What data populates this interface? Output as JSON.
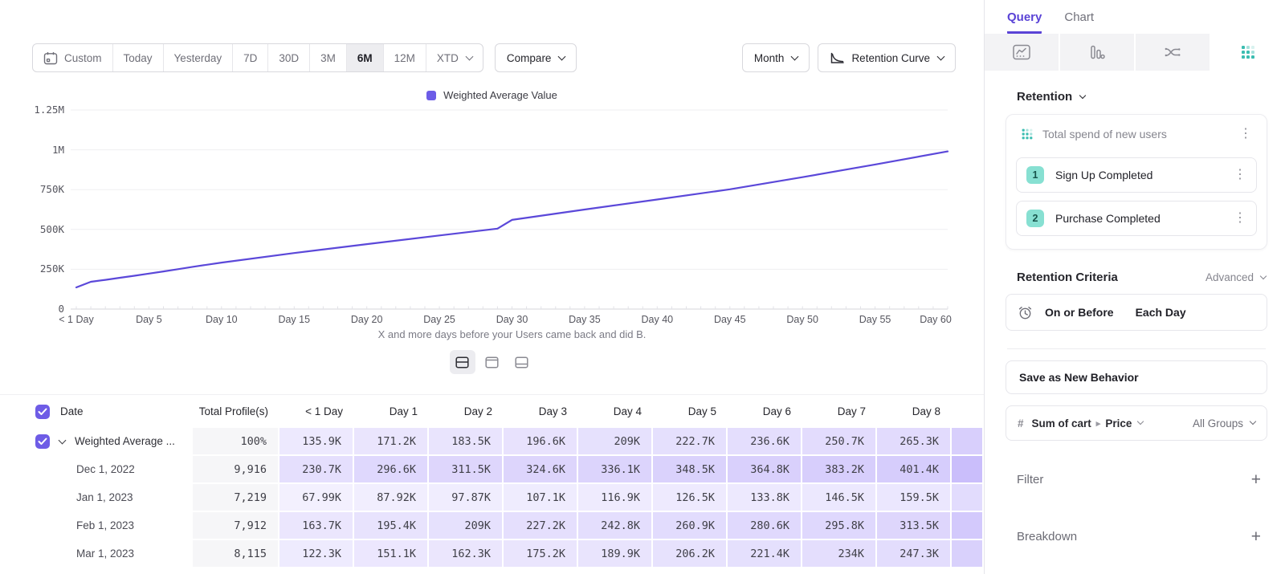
{
  "toolbar": {
    "date_ranges": [
      "Custom",
      "Today",
      "Yesterday",
      "7D",
      "30D",
      "3M",
      "6M",
      "12M",
      "XTD"
    ],
    "active_range": "6M",
    "dropdown_ranges": [
      "XTD"
    ],
    "compare": "Compare",
    "granularity": "Month",
    "chart_style": "Retention Curve"
  },
  "chart": {
    "legend": "Weighted Average Value",
    "caption": "X and more days before your Users came back and did B.",
    "y_ticks": [
      {
        "label": "1.25M",
        "value": 1250000
      },
      {
        "label": "1M",
        "value": 1000000
      },
      {
        "label": "750K",
        "value": 750000
      },
      {
        "label": "500K",
        "value": 500000
      },
      {
        "label": "250K",
        "value": 250000
      },
      {
        "label": "0",
        "value": 0
      }
    ],
    "x_ticks": [
      {
        "label": "< 1 Day",
        "day": 0
      },
      {
        "label": "Day 5",
        "day": 5
      },
      {
        "label": "Day 10",
        "day": 10
      },
      {
        "label": "Day 15",
        "day": 15
      },
      {
        "label": "Day 20",
        "day": 20
      },
      {
        "label": "Day 25",
        "day": 25
      },
      {
        "label": "Day 30",
        "day": 30
      },
      {
        "label": "Day 35",
        "day": 35
      },
      {
        "label": "Day 40",
        "day": 40
      },
      {
        "label": "Day 45",
        "day": 45
      },
      {
        "label": "Day 50",
        "day": 50
      },
      {
        "label": "Day 55",
        "day": 55
      },
      {
        "label": "Day 60",
        "day": 60
      }
    ]
  },
  "chart_data": {
    "type": "line",
    "title": "",
    "xlabel": "X and more days before your Users came back and did B.",
    "ylabel": "",
    "ylim": [
      0,
      1250000
    ],
    "xlim_days": [
      0,
      60
    ],
    "grid": true,
    "legend_position": "top-center",
    "series": [
      {
        "name": "Weighted Average Value",
        "color": "#5b48d9",
        "x": [
          0,
          1,
          2,
          3,
          4,
          5,
          6,
          7,
          8,
          10,
          15,
          20,
          25,
          29,
          30,
          35,
          40,
          45,
          50,
          55,
          60
        ],
        "values": [
          135900,
          171200,
          183500,
          196600,
          209000,
          222700,
          236600,
          250700,
          265300,
          292000,
          352000,
          408000,
          462000,
          505000,
          560000,
          625000,
          688000,
          752000,
          828000,
          908000,
          990000
        ]
      }
    ]
  },
  "table": {
    "columns": [
      "Date",
      "Total Profile(s)",
      "< 1 Day",
      "Day 1",
      "Day 2",
      "Day 3",
      "Day 4",
      "Day 5",
      "Day 6",
      "Day 7",
      "Day 8"
    ],
    "rows": [
      {
        "label": "Weighted Average ...",
        "expandable": true,
        "checked": true,
        "profiles": "100%",
        "values": [
          "135.9K",
          "171.2K",
          "183.5K",
          "196.6K",
          "209K",
          "222.7K",
          "236.6K",
          "250.7K",
          "265.3K"
        ]
      },
      {
        "label": "Dec 1, 2022",
        "profiles": "9,916",
        "values": [
          "230.7K",
          "296.6K",
          "311.5K",
          "324.6K",
          "336.1K",
          "348.5K",
          "364.8K",
          "383.2K",
          "401.4K"
        ]
      },
      {
        "label": "Jan 1, 2023",
        "profiles": "7,219",
        "values": [
          "67.99K",
          "87.92K",
          "97.87K",
          "107.1K",
          "116.9K",
          "126.5K",
          "133.8K",
          "146.5K",
          "159.5K"
        ]
      },
      {
        "label": "Feb 1, 2023",
        "profiles": "7,912",
        "values": [
          "163.7K",
          "195.4K",
          "209K",
          "227.2K",
          "242.8K",
          "260.9K",
          "280.6K",
          "295.8K",
          "313.5K"
        ]
      },
      {
        "label": "Mar 1, 2023",
        "profiles": "8,115",
        "values": [
          "122.3K",
          "151.1K",
          "162.3K",
          "175.2K",
          "189.9K",
          "206.2K",
          "221.4K",
          "234K",
          "247.3K"
        ]
      }
    ]
  },
  "layout_toggles": [
    {
      "icon": "split-view-icon",
      "active": true
    },
    {
      "icon": "table-focus-icon",
      "active": false
    },
    {
      "icon": "chart-focus-icon",
      "active": false
    }
  ],
  "sidebar": {
    "tabs": [
      {
        "label": "Query",
        "active": true
      },
      {
        "label": "Chart",
        "active": false
      }
    ],
    "view_tabs": [
      {
        "icon": "insights-icon",
        "active": false
      },
      {
        "icon": "funnels-icon",
        "active": false
      },
      {
        "icon": "flows-icon",
        "active": false
      },
      {
        "icon": "retention-icon",
        "active": true
      }
    ],
    "section_label": "Retention",
    "behavior": {
      "title": "Total spend of new users",
      "steps": [
        {
          "num": "1",
          "label": "Sign Up Completed"
        },
        {
          "num": "2",
          "label": "Purchase Completed"
        }
      ]
    },
    "criteria": {
      "label": "Retention Criteria",
      "mode": "Advanced",
      "condition": "On or Before",
      "window": "Each Day"
    },
    "save_button": "Save as New Behavior",
    "measure": {
      "symbol": "#",
      "property": "Sum of cart",
      "subproperty": "Price",
      "group": "All Groups"
    },
    "filter_label": "Filter",
    "breakdown_label": "Breakdown"
  },
  "colors": {
    "accent_purple": "#5a43d6",
    "line_purple": "#5b48d9",
    "heat_purple": "#7a5cf5",
    "teal": "#3bbdb1",
    "badge_teal_bg": "#87e0d2"
  }
}
